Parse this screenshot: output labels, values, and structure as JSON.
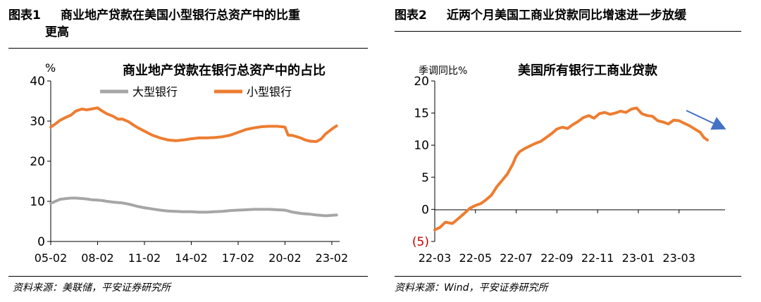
{
  "charts": [
    {
      "figure_label": "图表1",
      "heading_line1": "商业地产贷款在美国小型银行总资产中的比重",
      "heading_line2": "更高",
      "source": "资料来源：美联储，平安证券研究所",
      "chart_title": "商业地产贷款在银行总资产中的占比",
      "y_unit_label": "%",
      "legend": [
        "大型银行",
        "小型银行"
      ],
      "colors": {
        "large": "#a6a6a6",
        "small": "#ed7d31"
      }
    },
    {
      "figure_label": "图表2",
      "heading_line1": "近两个月美国工商业贷款同比增速进一步放缓",
      "source": "资料来源：Wind，平安证券研究所",
      "chart_title": "美国所有银行工商业贷款",
      "y_unit_label": "季调同比%",
      "colors": {
        "line": "#ed7d31",
        "arrow": "#4472c4"
      }
    }
  ],
  "chart_data": [
    {
      "type": "line",
      "title": "商业地产贷款在银行总资产中的占比",
      "xlabel": "",
      "ylabel": "%",
      "ylim": [
        0,
        40
      ],
      "yticks": [
        "0",
        "10",
        "20",
        "30",
        "40"
      ],
      "xlim": [
        2005.0,
        2023.5
      ],
      "xticks": [
        "05-02",
        "08-02",
        "11-02",
        "14-02",
        "17-02",
        "20-02",
        "23-02"
      ],
      "xtick_values": [
        2005.0,
        2008.0,
        2011.0,
        2014.0,
        2017.0,
        2020.0,
        2023.0
      ],
      "x": [
        2005.0,
        2005.3,
        2005.6,
        2006.0,
        2006.3,
        2006.6,
        2007.0,
        2007.3,
        2007.6,
        2008.0,
        2008.3,
        2008.6,
        2009.0,
        2009.3,
        2009.6,
        2010.0,
        2010.3,
        2010.6,
        2011.0,
        2011.5,
        2012.0,
        2012.5,
        2013.0,
        2013.5,
        2014.0,
        2014.5,
        2015.0,
        2015.5,
        2016.0,
        2016.5,
        2017.0,
        2017.5,
        2018.0,
        2018.5,
        2019.0,
        2019.5,
        2020.0,
        2020.2,
        2020.5,
        2021.0,
        2021.3,
        2021.6,
        2022.0,
        2022.3,
        2022.6,
        2023.0,
        2023.3
      ],
      "series": [
        {
          "name": "大型银行",
          "values": [
            9.5,
            10.0,
            10.5,
            10.7,
            10.8,
            10.8,
            10.7,
            10.6,
            10.4,
            10.3,
            10.2,
            10.0,
            9.8,
            9.7,
            9.6,
            9.3,
            9.0,
            8.7,
            8.4,
            8.1,
            7.8,
            7.6,
            7.5,
            7.4,
            7.4,
            7.3,
            7.3,
            7.4,
            7.5,
            7.7,
            7.8,
            7.9,
            8.0,
            8.0,
            8.0,
            7.9,
            7.8,
            7.6,
            7.3,
            7.0,
            6.9,
            6.8,
            6.6,
            6.5,
            6.4,
            6.5,
            6.6
          ]
        },
        {
          "name": "小型银行",
          "values": [
            28.5,
            29.3,
            30.2,
            31.0,
            31.5,
            32.5,
            33.0,
            32.8,
            33.0,
            33.3,
            32.5,
            31.8,
            31.2,
            30.5,
            30.5,
            29.8,
            29.0,
            28.3,
            27.5,
            26.5,
            25.8,
            25.3,
            25.1,
            25.3,
            25.6,
            25.8,
            25.8,
            25.9,
            26.1,
            26.5,
            27.2,
            27.9,
            28.3,
            28.6,
            28.7,
            28.7,
            28.5,
            26.5,
            26.4,
            25.8,
            25.3,
            25.0,
            24.9,
            25.5,
            26.8,
            28.0,
            28.8
          ]
        }
      ]
    },
    {
      "type": "line",
      "title": "美国所有银行工商业贷款",
      "xlabel": "",
      "ylabel": "季调同比%",
      "ylim": [
        -5,
        20
      ],
      "yticks": [
        "(5)",
        "0",
        "5",
        "10",
        "15",
        "20"
      ],
      "xlim": [
        0,
        16.4
      ],
      "xticks": [
        "22-03",
        "22-05",
        "22-07",
        "22-09",
        "22-11",
        "23-01",
        "23-03"
      ],
      "xtick_values": [
        0,
        2.3,
        4.6,
        6.9,
        9.2,
        11.5,
        13.8
      ],
      "x": [
        0.0,
        0.3,
        0.6,
        1.0,
        1.3,
        1.6,
        2.0,
        2.3,
        2.6,
        2.9,
        3.2,
        3.5,
        3.8,
        4.1,
        4.4,
        4.6,
        4.8,
        5.1,
        5.4,
        5.7,
        6.0,
        6.3,
        6.6,
        6.9,
        7.2,
        7.5,
        7.8,
        8.1,
        8.4,
        8.7,
        9.0,
        9.3,
        9.6,
        9.9,
        10.2,
        10.5,
        10.8,
        11.1,
        11.4,
        11.7,
        12.0,
        12.3,
        12.6,
        12.9,
        13.2,
        13.5,
        13.8,
        14.1,
        14.4,
        14.7,
        15.0,
        15.2,
        15.4
      ],
      "series": [
        {
          "name": "美国所有银行工商业贷款",
          "values": [
            -3.2,
            -2.8,
            -2.0,
            -2.2,
            -1.5,
            -0.8,
            0.2,
            0.6,
            0.9,
            1.5,
            2.2,
            3.5,
            4.5,
            5.5,
            7.0,
            8.3,
            9.0,
            9.5,
            9.9,
            10.3,
            10.6,
            11.2,
            11.8,
            12.5,
            12.8,
            12.6,
            13.2,
            13.7,
            14.3,
            14.6,
            14.2,
            14.9,
            15.1,
            14.8,
            15.0,
            15.3,
            15.1,
            15.6,
            15.8,
            14.9,
            14.6,
            14.5,
            13.8,
            13.6,
            13.3,
            13.9,
            13.8,
            13.4,
            13.0,
            12.5,
            12.0,
            11.2,
            10.8
          ]
        }
      ],
      "annotations": [
        {
          "type": "arrow",
          "note": "declining trend"
        }
      ]
    }
  ]
}
